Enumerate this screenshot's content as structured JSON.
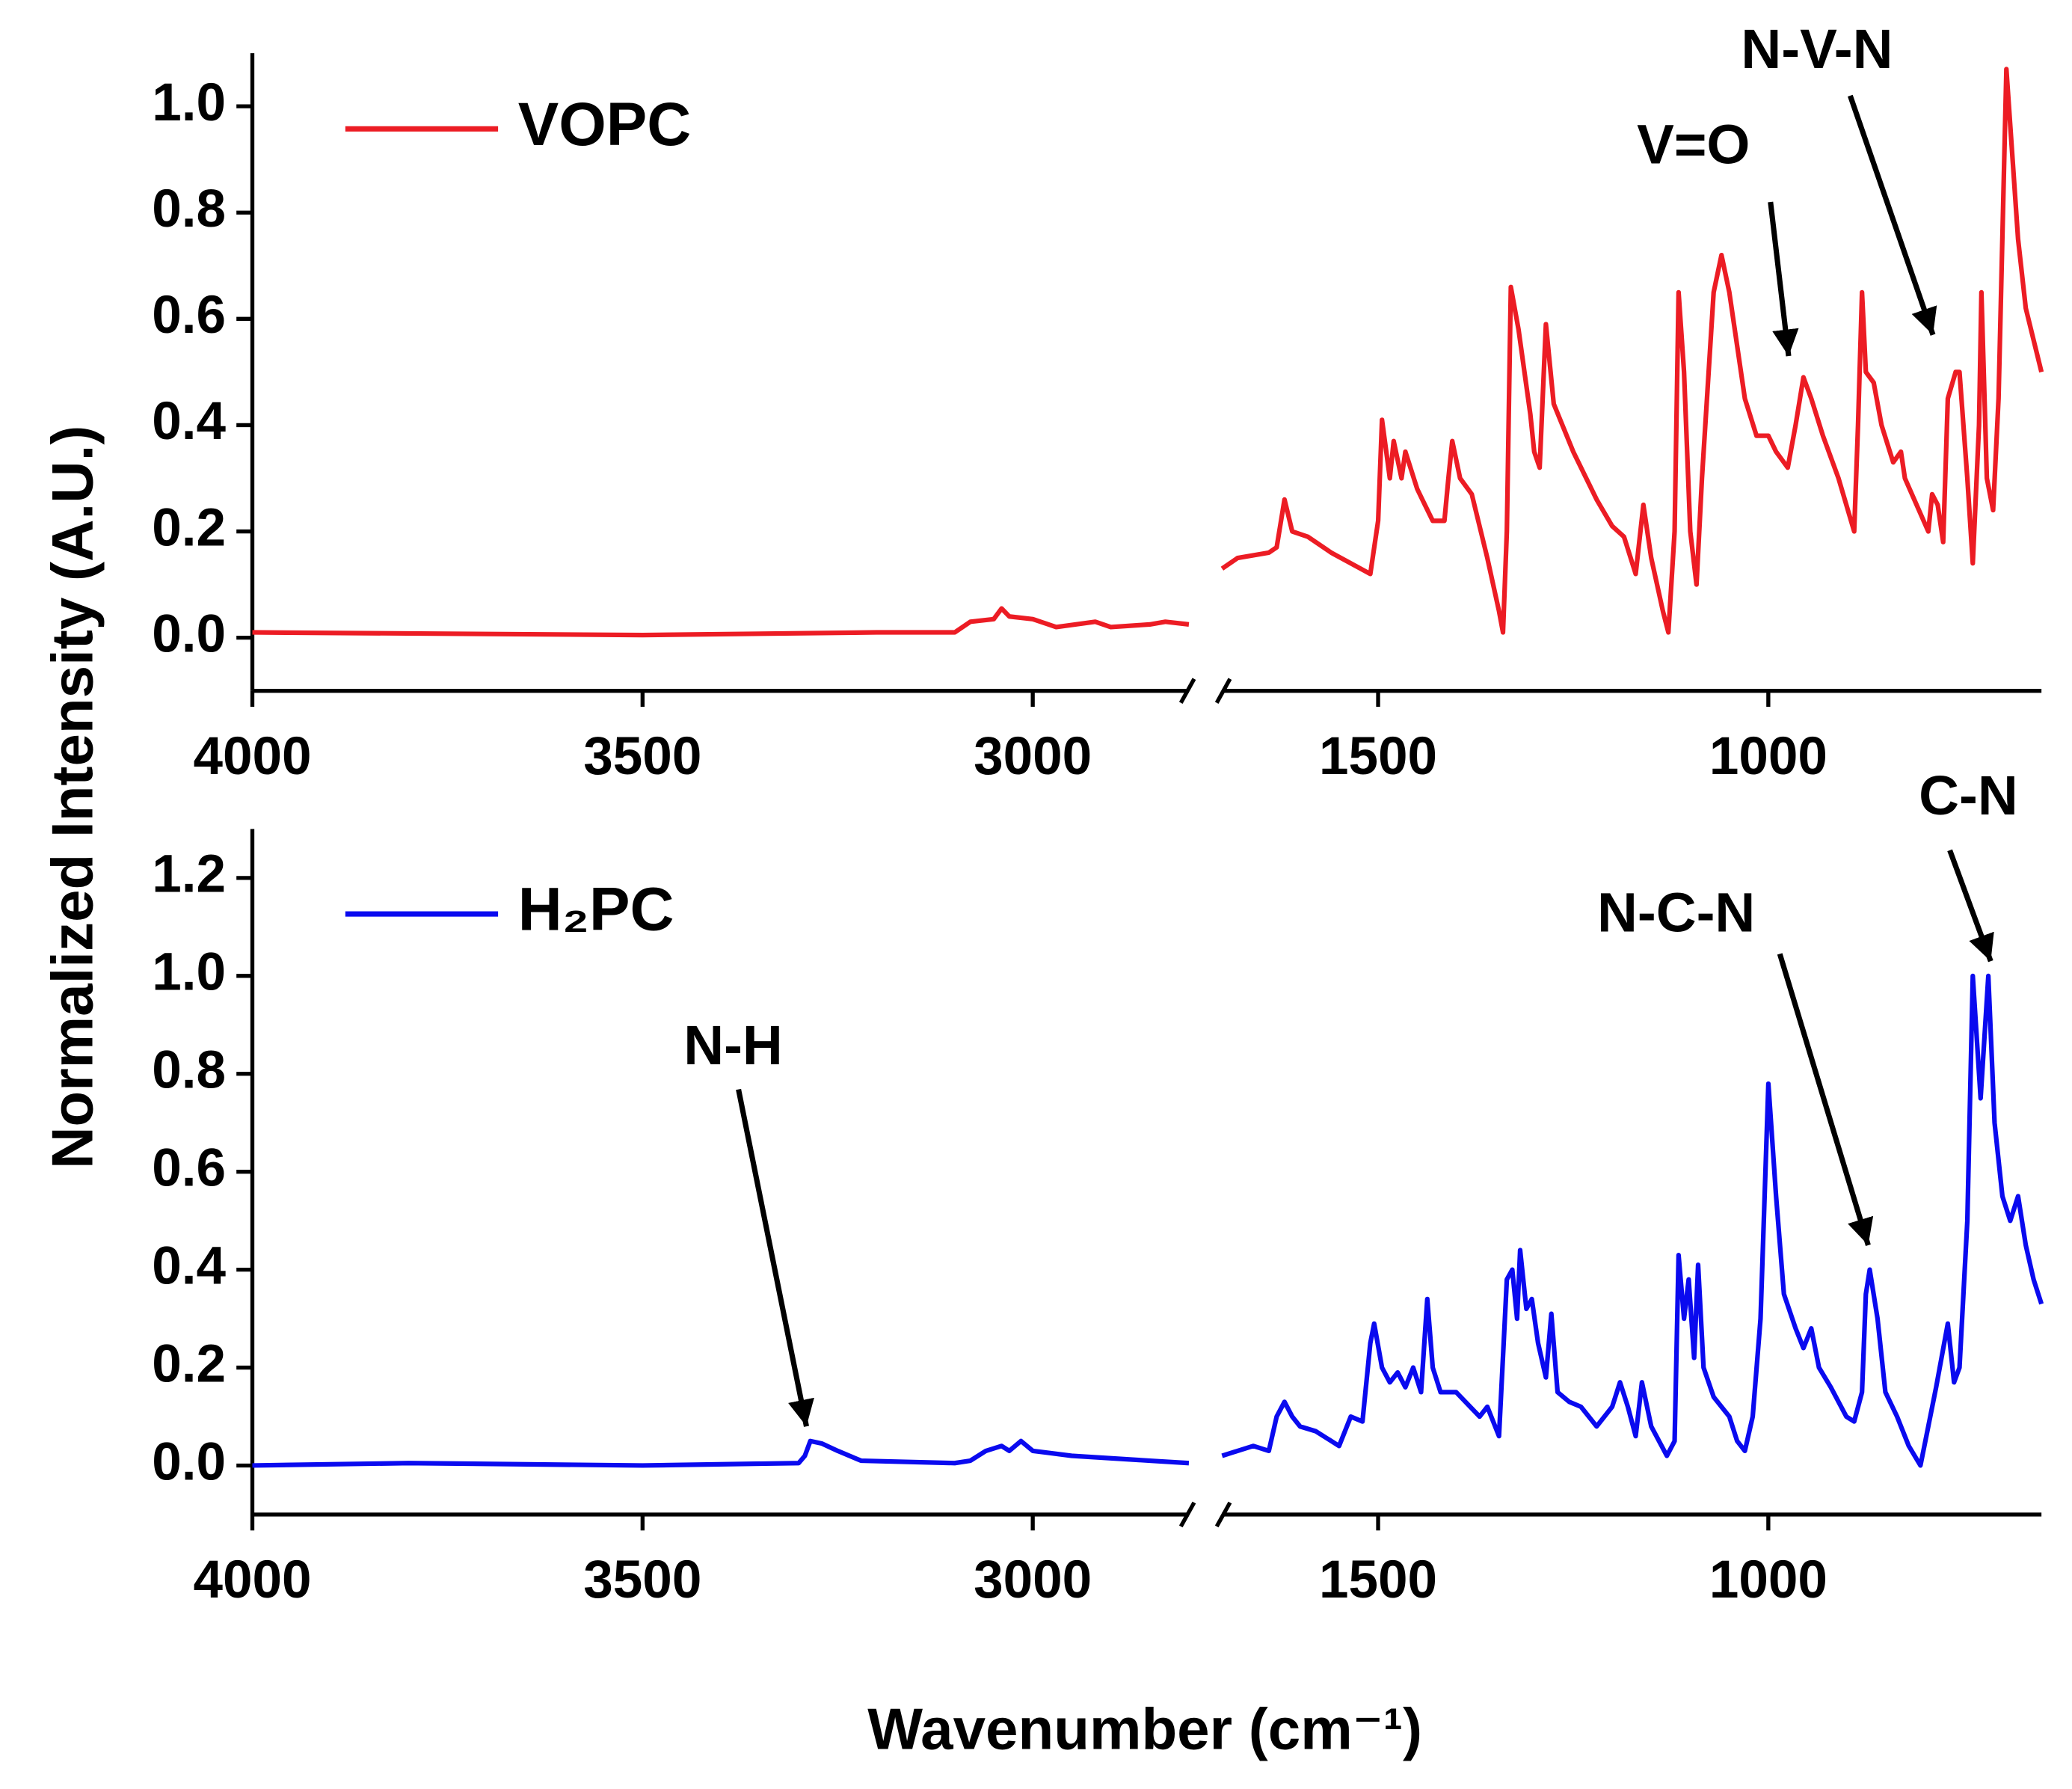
{
  "ylabel": "Normalized Intensity (A.U.)",
  "xlabel": "Wavenumber (cm⁻¹)",
  "chart_data": [
    {
      "type": "line",
      "xlim": [
        4000,
        650
      ],
      "xbreak": [
        2800,
        1700
      ],
      "xticks": [
        4000,
        3500,
        3000,
        1500,
        1000
      ],
      "ylim": [
        -0.1,
        1.1
      ],
      "yticks": [
        {
          "value": 0,
          "label": "0.0"
        },
        0.2,
        0.4,
        0.6,
        0.8,
        {
          "value": 1,
          "label": "1.0"
        }
      ],
      "series": [
        {
          "name": "VOPC",
          "color": "#ec1c24",
          "x": [
            4000,
            3500,
            3200,
            3100,
            3080,
            3050,
            3040,
            3030,
            3000,
            2970,
            2920,
            2900,
            2850,
            2830,
            2800,
            null,
            1700,
            1680,
            1640,
            1630,
            1620,
            1610,
            1590,
            1560,
            1510,
            1500,
            1495,
            1485,
            1480,
            1470,
            1465,
            1450,
            1440,
            1430,
            1415,
            1410,
            1405,
            1395,
            1380,
            1360,
            1345,
            1340,
            1335,
            1330,
            1320,
            1305,
            1300,
            1293,
            1285,
            1275,
            1250,
            1220,
            1200,
            1185,
            1170,
            1160,
            1150,
            1135,
            1128,
            1120,
            1115,
            1108,
            1100,
            1092,
            1085,
            1070,
            1060,
            1050,
            1030,
            1015,
            1000,
            990,
            975,
            965,
            955,
            945,
            930,
            910,
            890,
            885,
            880,
            875,
            865,
            855,
            840,
            830,
            825,
            810,
            795,
            790,
            783,
            776,
            770,
            760,
            755,
            745,
            738,
            730,
            727,
            720,
            712,
            705,
            695,
            680,
            670,
            660,
            650
          ],
          "values": [
            0.01,
            0.005,
            0.01,
            0.01,
            0.03,
            0.035,
            0.055,
            0.04,
            0.035,
            0.02,
            0.03,
            0.02,
            0.025,
            0.03,
            0.025,
            null,
            0.13,
            0.15,
            0.16,
            0.17,
            0.26,
            0.2,
            0.19,
            0.16,
            0.12,
            0.22,
            0.41,
            0.3,
            0.37,
            0.3,
            0.35,
            0.28,
            0.25,
            0.22,
            0.22,
            0.3,
            0.37,
            0.3,
            0.27,
            0.15,
            0.05,
            0.01,
            0.2,
            0.66,
            0.58,
            0.42,
            0.35,
            0.32,
            0.59,
            0.44,
            0.35,
            0.26,
            0.21,
            0.19,
            0.12,
            0.25,
            0.15,
            0.05,
            0.01,
            0.2,
            0.65,
            0.5,
            0.2,
            0.1,
            0.3,
            0.65,
            0.72,
            0.65,
            0.45,
            0.38,
            0.38,
            0.35,
            0.32,
            0.4,
            0.49,
            0.45,
            0.38,
            0.3,
            0.2,
            0.4,
            0.65,
            0.5,
            0.48,
            0.4,
            0.33,
            0.35,
            0.3,
            0.25,
            0.2,
            0.27,
            0.25,
            0.18,
            0.45,
            0.5,
            0.5,
            0.3,
            0.14,
            0.4,
            0.65,
            0.3,
            0.24,
            0.45,
            1.07,
            0.75,
            0.62,
            0.56,
            0.5
          ]
        }
      ],
      "annotations": [
        {
          "text": "V=O",
          "x": 974,
          "y": 0.53
        },
        {
          "text": "N-V-N",
          "x": 789,
          "y": 0.57
        }
      ]
    },
    {
      "type": "line",
      "xlim": [
        4000,
        650
      ],
      "xbreak": [
        2800,
        1700
      ],
      "xticks": [
        4000,
        3500,
        3000,
        1500,
        1000
      ],
      "ylim": [
        -0.1,
        1.3
      ],
      "yticks": [
        {
          "value": 0,
          "label": "0.0"
        },
        0.2,
        0.4,
        0.6,
        0.8,
        {
          "value": 1,
          "label": "1.0"
        },
        1.2
      ],
      "series": [
        {
          "name": "H₂PC",
          "color": "#0a0aef",
          "x": [
            4000,
            3800,
            3500,
            3300,
            3292,
            3285,
            3270,
            3250,
            3220,
            3100,
            3080,
            3060,
            3040,
            3030,
            3015,
            3000,
            2950,
            2850,
            2800,
            null,
            1700,
            1660,
            1640,
            1630,
            1620,
            1610,
            1600,
            1580,
            1550,
            1535,
            1520,
            1510,
            1505,
            1495,
            1485,
            1475,
            1465,
            1455,
            1445,
            1437,
            1430,
            1420,
            1400,
            1370,
            1360,
            1345,
            1335,
            1328,
            1322,
            1318,
            1310,
            1303,
            1295,
            1285,
            1278,
            1270,
            1255,
            1240,
            1220,
            1200,
            1190,
            1180,
            1170,
            1162,
            1150,
            1130,
            1120,
            1115,
            1108,
            1102,
            1095,
            1090,
            1083,
            1070,
            1050,
            1040,
            1030,
            1020,
            1010,
            1000,
            990,
            980,
            965,
            955,
            945,
            935,
            920,
            900,
            890,
            880,
            875,
            870,
            860,
            850,
            835,
            820,
            805,
            795,
            785,
            770,
            762,
            755,
            745,
            738,
            728,
            718,
            710,
            700,
            690,
            680,
            670,
            660,
            650
          ],
          "values": [
            0,
            0.005,
            0,
            0.005,
            0.02,
            0.05,
            0.045,
            0.03,
            0.01,
            0.005,
            0.01,
            0.03,
            0.04,
            0.03,
            0.05,
            0.03,
            0.02,
            0.01,
            0.005,
            null,
            0.02,
            0.04,
            0.03,
            0.1,
            0.13,
            0.1,
            0.08,
            0.07,
            0.04,
            0.1,
            0.09,
            0.25,
            0.29,
            0.2,
            0.17,
            0.19,
            0.16,
            0.2,
            0.15,
            0.34,
            0.2,
            0.15,
            0.15,
            0.1,
            0.12,
            0.06,
            0.38,
            0.4,
            0.3,
            0.44,
            0.32,
            0.34,
            0.25,
            0.18,
            0.31,
            0.15,
            0.13,
            0.12,
            0.08,
            0.12,
            0.17,
            0.12,
            0.06,
            0.17,
            0.08,
            0.02,
            0.05,
            0.43,
            0.3,
            0.38,
            0.22,
            0.41,
            0.2,
            0.14,
            0.1,
            0.05,
            0.03,
            0.1,
            0.3,
            0.78,
            0.55,
            0.35,
            0.28,
            0.24,
            0.28,
            0.2,
            0.16,
            0.1,
            0.09,
            0.15,
            0.35,
            0.4,
            0.3,
            0.15,
            0.1,
            0.04,
            0,
            0.08,
            0.16,
            0.29,
            0.17,
            0.2,
            0.5,
            1,
            0.75,
            1,
            0.7,
            0.55,
            0.5,
            0.55,
            0.45,
            0.38,
            0.33
          ]
        }
      ],
      "annotations": [
        {
          "text": "N-H",
          "x": 3290,
          "y": 0.08
        },
        {
          "text": "N-C-N",
          "x": 872,
          "y": 0.45
        },
        {
          "text": "C-N",
          "x": 715,
          "y": 1.03
        }
      ]
    }
  ]
}
